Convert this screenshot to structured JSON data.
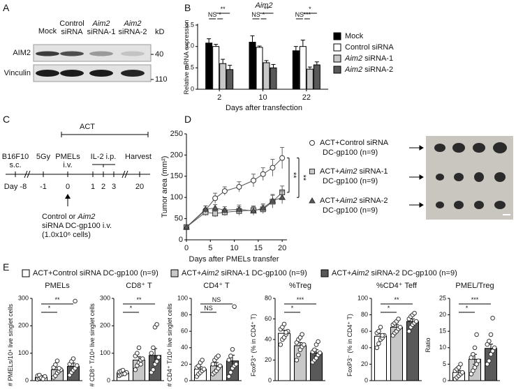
{
  "panel_a": {
    "letter": "A",
    "lanes": [
      [
        "Mock"
      ],
      [
        "Control",
        "siRNA"
      ],
      [
        "Aim2",
        "siRNA-1"
      ],
      [
        "Aim2",
        "siRNA-2"
      ]
    ],
    "unit": "kD",
    "rows": [
      {
        "label": "AIM2",
        "marker": 40
      },
      {
        "label": "Vinculin",
        "marker": 110
      }
    ]
  },
  "panel_c": {
    "letter": "C",
    "act": "ACT",
    "events": [
      [
        "B16F10",
        "s.c."
      ],
      [
        "5Gy"
      ],
      [
        "PMELs",
        "i.v."
      ],
      [
        "IL-2 i.p."
      ],
      [
        "Harvest"
      ]
    ],
    "days": [
      "Day -8",
      "-1",
      "0",
      "1",
      "2",
      "3",
      "20"
    ],
    "injection": [
      "Control or Aim2",
      "siRNA DC-gp100 i.v.",
      "(1.0x10⁶ cells)"
    ]
  },
  "panel_e": {
    "letter": "E",
    "legend": [
      {
        "name": "ACT+Control siRNA DC-gp100 (n=9)",
        "color": "#ffffff"
      },
      {
        "name": "ACT+Aim2 siRNA-1 DC-gp100 (n=9)",
        "color": "#c8c8c8"
      },
      {
        "name": "ACT+Aim2 siRNA-2 DC-gp100 (n=9)",
        "color": "#595959"
      }
    ]
  },
  "chart_data": [
    {
      "type": "bar",
      "letter": "B",
      "title": "Aim2",
      "y_label": "Relative mRNA expression",
      "x_label": "Days after transfection",
      "categories": [
        "2",
        "10",
        "22"
      ],
      "ylim": [
        0,
        1.5
      ],
      "yticks": [
        0,
        0.5,
        {
          "value": 1,
          "label": "1.0"
        },
        1.5
      ],
      "series": [
        {
          "name": "Mock",
          "color": "#000000",
          "values": [
            1.08,
            1.1,
            0.9
          ],
          "errors": [
            0.1,
            0.15,
            0.1
          ]
        },
        {
          "name": "Control siRNA",
          "color": "#ffffff",
          "values": [
            1.0,
            0.98,
            1.0
          ],
          "errors": [
            0.05,
            0.03,
            0.15
          ]
        },
        {
          "name": "Aim2 siRNA-1",
          "color": "#c8c8c8",
          "values": [
            0.6,
            0.62,
            0.47
          ],
          "errors": [
            0.1,
            0.05,
            0.05
          ]
        },
        {
          "name": "Aim2 siRNA-2",
          "color": "#595959",
          "values": [
            0.46,
            0.5,
            0.57
          ],
          "errors": [
            0.1,
            0.08,
            0.07
          ]
        }
      ],
      "annotations": [
        [
          "NS",
          "*",
          "**"
        ],
        [
          "NS",
          "*",
          "**"
        ],
        [
          "NS",
          "***",
          "*"
        ]
      ]
    },
    {
      "type": "line",
      "letter": "D",
      "y_label": "Tumor area (mm²)",
      "x_label": "Days after PMELs transfer",
      "x": [
        0,
        4,
        6,
        8,
        11,
        14,
        16,
        18,
        20
      ],
      "xlim": [
        0,
        21
      ],
      "xticks": [
        0,
        5,
        10,
        15,
        20
      ],
      "ylim": [
        0,
        250
      ],
      "yticks": [
        0,
        50,
        100,
        150,
        200,
        250
      ],
      "series": [
        {
          "name": [
            "ACT+Control siRNA",
            "DC-gp100 (n=9)"
          ],
          "color": "#ffffff",
          "values": [
            30,
            70,
            98,
            115,
            125,
            140,
            155,
            170,
            193
          ],
          "errors": [
            5,
            10,
            12,
            10,
            12,
            15,
            15,
            20,
            25
          ]
        },
        {
          "name": [
            "ACT+Aim2 siRNA-1",
            "DC-gp100 (n=9)"
          ],
          "color": "#c8c8c8",
          "values": [
            30,
            65,
            62,
            65,
            68,
            70,
            72,
            90,
            112
          ],
          "errors": [
            5,
            8,
            8,
            8,
            10,
            10,
            10,
            15,
            15
          ]
        },
        {
          "name": [
            "ACT+Aim2 siRNA-2",
            "DC-gp100 (n=9)"
          ],
          "color": "#595959",
          "values": [
            30,
            72,
            75,
            70,
            72,
            68,
            75,
            92,
            100
          ],
          "errors": [
            5,
            8,
            8,
            8,
            10,
            10,
            10,
            15,
            15
          ]
        }
      ],
      "annotations": [
        "**",
        "**"
      ]
    },
    {
      "type": "bar",
      "title": "PMELs",
      "y_label": "# PMELs/10⁴ live singlet cells",
      "ylim": [
        0,
        300
      ],
      "yticks": [
        0,
        100,
        200,
        300
      ],
      "values": [
        12,
        40,
        52
      ],
      "errors": [
        3,
        8,
        12
      ],
      "points": [
        [
          5,
          8,
          10,
          12,
          15,
          18,
          20,
          10,
          6
        ],
        [
          12,
          18,
          28,
          35,
          40,
          48,
          58,
          72,
          45
        ],
        [
          20,
          30,
          38,
          45,
          55,
          60,
          70,
          80,
          290
        ]
      ],
      "annotations": [
        "*",
        "**"
      ]
    },
    {
      "type": "bar",
      "title": "CD8⁺ T",
      "y_label": "# CD8⁺ T/10⁴ live singlet cells",
      "ylim": [
        0,
        300
      ],
      "yticks": [
        0,
        100,
        200,
        300
      ],
      "values": [
        28,
        75,
        92
      ],
      "errors": [
        5,
        12,
        25
      ],
      "points": [
        [
          18,
          22,
          25,
          28,
          30,
          32,
          35,
          38,
          25
        ],
        [
          40,
          55,
          65,
          75,
          80,
          90,
          100,
          120,
          60
        ],
        [
          30,
          40,
          60,
          70,
          85,
          100,
          120,
          195,
          205
        ]
      ],
      "annotations": [
        "*",
        "**"
      ]
    },
    {
      "type": "bar",
      "title": "CD4⁺ T",
      "y_label": "# CD4⁺ T/10⁴ live singlet cells",
      "ylim": [
        0,
        100
      ],
      "yticks": [
        0,
        20,
        40,
        60,
        80,
        100
      ],
      "values": [
        14,
        18,
        24
      ],
      "errors": [
        3,
        4,
        7
      ],
      "points": [
        [
          5,
          8,
          10,
          12,
          14,
          16,
          18,
          22,
          25
        ],
        [
          8,
          10,
          12,
          15,
          18,
          20,
          25,
          28,
          30
        ],
        [
          5,
          10,
          15,
          18,
          20,
          25,
          30,
          38,
          90
        ]
      ],
      "annotations": [
        "NS",
        "NS"
      ]
    },
    {
      "type": "bar",
      "title": "%Treg",
      "y_label": "FoxP3⁺ (% in CD4⁺ T)",
      "ylim": [
        0,
        80
      ],
      "yticks": [
        0,
        20,
        40,
        60,
        80
      ],
      "values": [
        46,
        34,
        27
      ],
      "errors": [
        3,
        3,
        3
      ],
      "points": [
        [
          35,
          40,
          42,
          45,
          48,
          50,
          52,
          55,
          47
        ],
        [
          20,
          25,
          30,
          33,
          35,
          37,
          40,
          42,
          45
        ],
        [
          18,
          20,
          22,
          25,
          27,
          28,
          30,
          35,
          38
        ]
      ],
      "annotations": [
        "*",
        "***"
      ]
    },
    {
      "type": "bar",
      "title": "%CD4⁺ Teff",
      "y_label": "FoxP3⁻ (% in CD4⁺ T)",
      "ylim": [
        0,
        100
      ],
      "yticks": [
        0,
        20,
        40,
        60,
        80,
        100
      ],
      "values": [
        54,
        65,
        72
      ],
      "errors": [
        3,
        3,
        3
      ],
      "points": [
        [
          40,
          45,
          50,
          52,
          55,
          58,
          60,
          65,
          55
        ],
        [
          55,
          58,
          60,
          63,
          65,
          68,
          70,
          72,
          75
        ],
        [
          60,
          65,
          68,
          70,
          72,
          75,
          78,
          80,
          82
        ]
      ],
      "annotations": [
        "*",
        "**"
      ]
    },
    {
      "type": "bar",
      "title": "PMEL/Treg",
      "y_label": "Ratio",
      "ylim": [
        0,
        25
      ],
      "yticks": [
        0,
        5,
        10,
        15,
        20,
        25
      ],
      "values": [
        2.5,
        6.5,
        9.8
      ],
      "errors": [
        0.6,
        1.5,
        1.3
      ],
      "points": [
        [
          0.5,
          1,
          1.5,
          2,
          2.5,
          3,
          3.5,
          4,
          5
        ],
        [
          2,
          3,
          4,
          5,
          6,
          7,
          8,
          10,
          14
        ],
        [
          5,
          6,
          8,
          9,
          10,
          11,
          12,
          14,
          19
        ]
      ],
      "annotations": [
        "*",
        "***"
      ]
    }
  ]
}
